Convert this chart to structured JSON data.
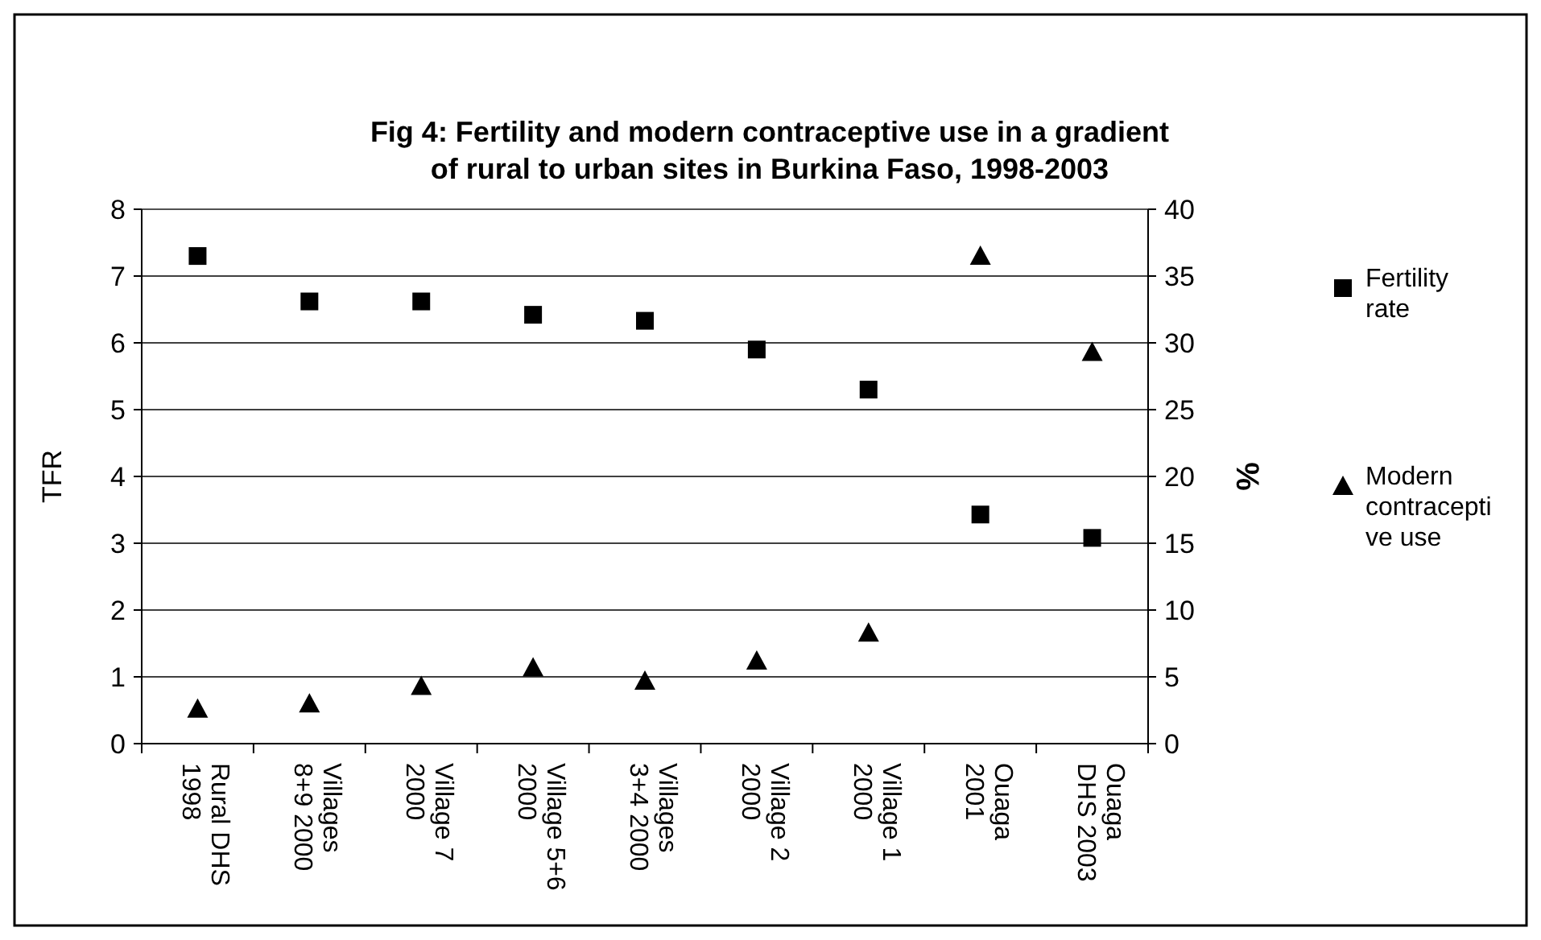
{
  "chart_data": {
    "type": "scatter",
    "title": "Fig 4: Fertility and modern contraceptive use in a gradient\nof rural to urban sites in Burkina Faso, 1998-2003",
    "categories": [
      "Rural DHS\n1998",
      "Villages\n8+9 2000",
      "Village 7\n2000",
      "Village 5+6\n2000",
      "Villages\n3+4 2000",
      "Village 2\n2000",
      "Village 1\n2000",
      "Ouaga\n2001",
      "Ouaga\nDHS 2003"
    ],
    "ylabel": "TFR",
    "y2label": "%",
    "ylim": [
      0,
      8
    ],
    "yticks": [
      0,
      1,
      2,
      3,
      4,
      5,
      6,
      7,
      8
    ],
    "y2lim": [
      0,
      40
    ],
    "y2ticks": [
      0,
      5,
      10,
      15,
      20,
      25,
      30,
      35,
      40
    ],
    "grid": "y",
    "legend": "right",
    "series": [
      {
        "name": "Fertility rate",
        "color": "#000000",
        "marker": "square",
        "values": [
          7.3,
          6.62,
          6.62,
          6.42,
          6.33,
          5.9,
          5.3,
          3.43,
          3.08
        ]
      },
      {
        "name": "Modern contraceptive use",
        "color": "#000000",
        "marker": "triangle",
        "axis": "y2",
        "values": [
          2.6,
          3.0,
          4.3,
          5.7,
          4.7,
          6.2,
          8.3,
          36.5,
          29.3
        ]
      }
    ]
  }
}
